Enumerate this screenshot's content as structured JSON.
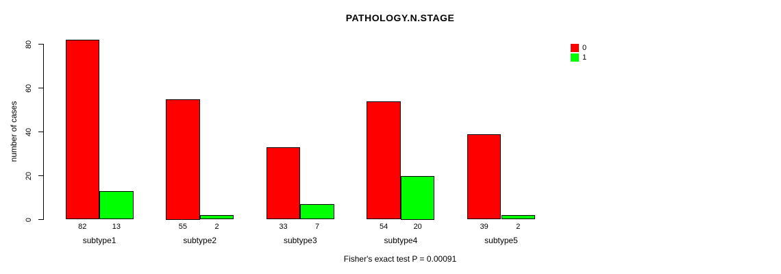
{
  "chart_data": {
    "type": "bar",
    "title": "PATHOLOGY.N.STAGE",
    "ylabel": "number of cases",
    "xlabel": "",
    "categories": [
      "subtype1",
      "subtype2",
      "subtype3",
      "subtype4",
      "subtype5"
    ],
    "series": [
      {
        "name": "0",
        "color": "#ff0000",
        "values": [
          82,
          55,
          33,
          54,
          39
        ]
      },
      {
        "name": "1",
        "color": "#00ff00",
        "values": [
          13,
          2,
          7,
          20,
          2
        ]
      }
    ],
    "yticks": [
      0,
      20,
      40,
      60,
      80
    ],
    "ylim": [
      0,
      82
    ],
    "grid": false,
    "legend_position": "top-right",
    "bar_value_labels_shown": true,
    "annotation": "Fisher's exact test P = 0.00091"
  },
  "footer": {
    "text": "Fisher's exact test P = 0.00091"
  },
  "colors": {
    "background": "#ffffff",
    "axis": "#000000",
    "text": "#000000",
    "bar_border": "#000000",
    "series0": "#ff0000",
    "series1": "#00ff00"
  }
}
